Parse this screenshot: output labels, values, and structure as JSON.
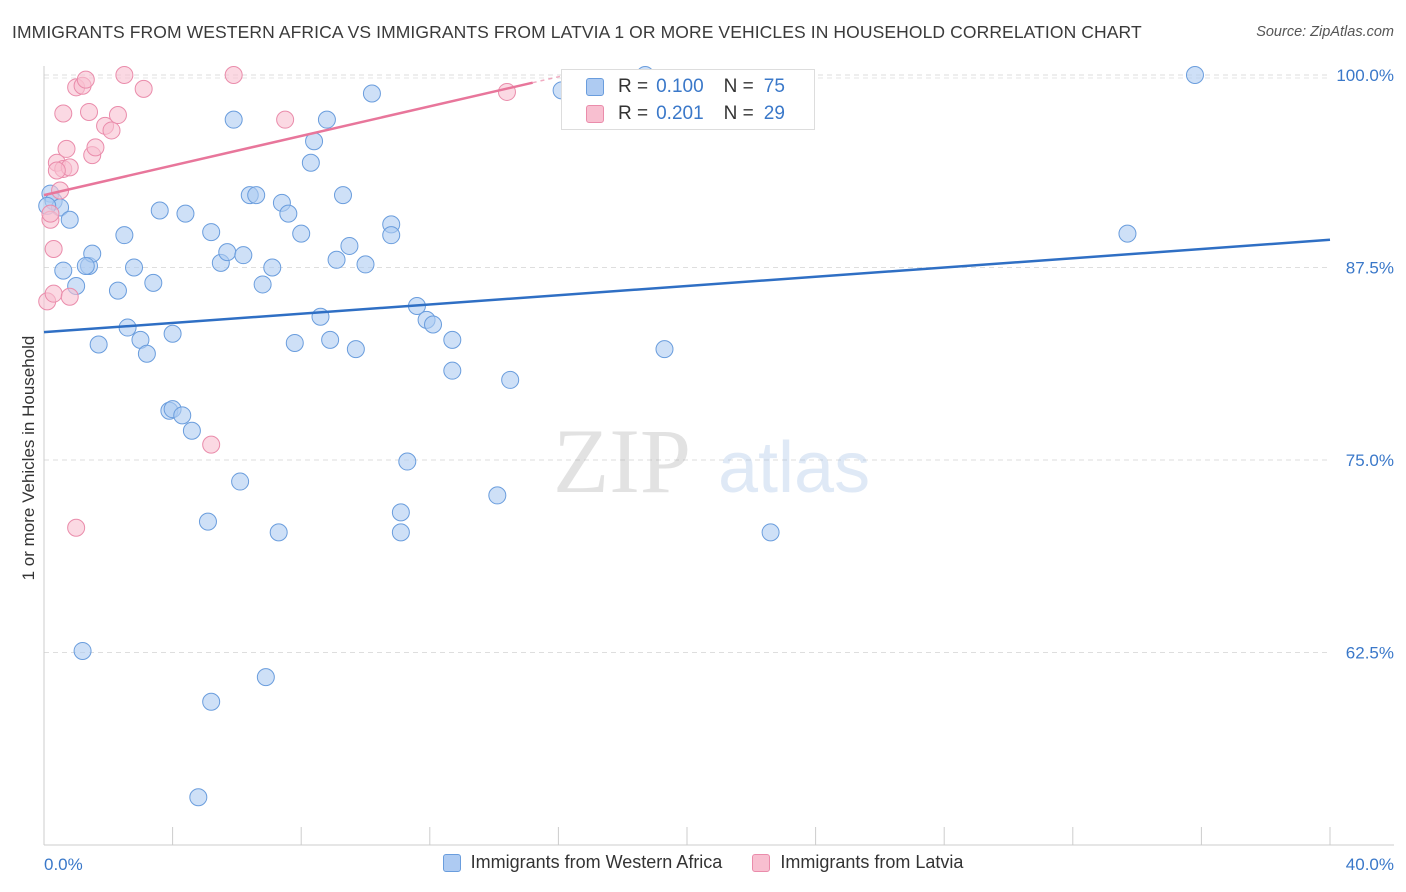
{
  "header": {
    "title": "IMMIGRANTS FROM WESTERN AFRICA VS IMMIGRANTS FROM LATVIA 1 OR MORE VEHICLES IN HOUSEHOLD CORRELATION CHART",
    "source": "Source: ZipAtlas.com"
  },
  "watermark": {
    "zip": "ZIP",
    "atlas": "atlas"
  },
  "legend": {
    "series": [
      {
        "label": "Immigrants from Western Africa",
        "fill": "#aecbf2",
        "stroke": "#6a9ddd"
      },
      {
        "label": "Immigrants from Latvia",
        "fill": "#f8bfd0",
        "stroke": "#ea8cab"
      }
    ]
  },
  "stats": [
    {
      "r_label": "R =",
      "r_value": "0.100",
      "n_label": "N =",
      "n_value": "75"
    },
    {
      "r_label": "R =",
      "r_value": "0.201",
      "n_label": "N =",
      "n_value": "29"
    }
  ],
  "chart_data": {
    "type": "scatter",
    "title": "IMMIGRANTS FROM WESTERN AFRICA VS IMMIGRANTS FROM LATVIA 1 OR MORE VEHICLES IN HOUSEHOLD CORRELATION CHART",
    "xlabel": "",
    "ylabel": "1 or more Vehicles in Household",
    "xlim": [
      0,
      40
    ],
    "ylim": [
      50,
      100
    ],
    "x_tick_labels": [
      "0.0%",
      "40.0%"
    ],
    "y_ticks": [
      62.5,
      75.0,
      87.5,
      100.0
    ],
    "y_tick_labels": [
      "62.5%",
      "75.0%",
      "87.5%",
      "100.0%"
    ],
    "grid": true,
    "series": [
      {
        "name": "Immigrants from Western Africa",
        "color": "#5b93d6",
        "trend": {
          "x": [
            0,
            40
          ],
          "y": [
            83.3,
            89.3
          ],
          "color": "#2f6fc4"
        },
        "points": [
          [
            0.2,
            92.3
          ],
          [
            0.3,
            91.8
          ],
          [
            0.5,
            91.4
          ],
          [
            0.8,
            90.6
          ],
          [
            0.6,
            87.3
          ],
          [
            1.0,
            86.3
          ],
          [
            1.4,
            87.6
          ],
          [
            1.5,
            88.4
          ],
          [
            1.7,
            82.5
          ],
          [
            2.3,
            86.0
          ],
          [
            2.5,
            89.6
          ],
          [
            2.6,
            83.6
          ],
          [
            2.8,
            87.5
          ],
          [
            3.0,
            82.8
          ],
          [
            3.2,
            81.9
          ],
          [
            3.4,
            86.5
          ],
          [
            3.6,
            91.2
          ],
          [
            3.9,
            78.2
          ],
          [
            4.0,
            78.3
          ],
          [
            4.0,
            83.2
          ],
          [
            4.3,
            77.9
          ],
          [
            4.4,
            91.0
          ],
          [
            4.6,
            76.9
          ],
          [
            5.1,
            71.0
          ],
          [
            5.2,
            89.8
          ],
          [
            5.5,
            87.8
          ],
          [
            5.7,
            88.5
          ],
          [
            5.9,
            97.1
          ],
          [
            6.1,
            73.6
          ],
          [
            6.2,
            88.3
          ],
          [
            6.4,
            92.2
          ],
          [
            6.6,
            92.2
          ],
          [
            6.8,
            86.4
          ],
          [
            7.1,
            87.5
          ],
          [
            7.3,
            70.3
          ],
          [
            7.4,
            91.7
          ],
          [
            7.6,
            91.0
          ],
          [
            7.8,
            82.6
          ],
          [
            8.0,
            89.7
          ],
          [
            8.3,
            94.3
          ],
          [
            8.4,
            95.7
          ],
          [
            8.6,
            84.3
          ],
          [
            8.8,
            97.1
          ],
          [
            8.9,
            82.8
          ],
          [
            9.1,
            88.0
          ],
          [
            9.3,
            92.2
          ],
          [
            9.5,
            88.9
          ],
          [
            9.7,
            82.2
          ],
          [
            10.0,
            87.7
          ],
          [
            10.2,
            98.8
          ],
          [
            10.8,
            90.3
          ],
          [
            10.8,
            89.6
          ],
          [
            11.1,
            71.6
          ],
          [
            11.1,
            70.3
          ],
          [
            11.3,
            74.9
          ],
          [
            11.6,
            85.0
          ],
          [
            11.9,
            84.1
          ],
          [
            12.1,
            83.8
          ],
          [
            12.7,
            82.8
          ],
          [
            12.7,
            80.8
          ],
          [
            14.1,
            72.7
          ],
          [
            14.5,
            80.2
          ],
          [
            16.1,
            99.0
          ],
          [
            16.4,
            99.2
          ],
          [
            18.7,
            100.0
          ],
          [
            19.3,
            82.2
          ],
          [
            22.6,
            70.3
          ],
          [
            33.7,
            89.7
          ],
          [
            35.8,
            100.0
          ],
          [
            1.2,
            62.6
          ],
          [
            5.2,
            59.3
          ],
          [
            6.9,
            60.9
          ],
          [
            4.8,
            53.1
          ],
          [
            0.1,
            91.5
          ],
          [
            1.3,
            87.6
          ]
        ]
      },
      {
        "name": "Immigrants from Latvia",
        "color": "#ef8fae",
        "trend": {
          "x": [
            0,
            15.2
          ],
          "y": [
            92.2,
            99.5
          ],
          "color": "#e8769b",
          "dashed_extension_to_x": 16.3
        },
        "points": [
          [
            0.1,
            85.3
          ],
          [
            0.2,
            90.6
          ],
          [
            0.2,
            91.0
          ],
          [
            0.3,
            85.8
          ],
          [
            0.3,
            88.7
          ],
          [
            0.4,
            94.3
          ],
          [
            0.5,
            92.5
          ],
          [
            0.6,
            97.5
          ],
          [
            0.6,
            93.9
          ],
          [
            0.7,
            95.2
          ],
          [
            0.8,
            94.0
          ],
          [
            0.8,
            85.6
          ],
          [
            1.0,
            99.2
          ],
          [
            1.2,
            99.3
          ],
          [
            1.3,
            99.7
          ],
          [
            1.4,
            97.6
          ],
          [
            1.5,
            94.8
          ],
          [
            1.6,
            95.3
          ],
          [
            1.9,
            96.7
          ],
          [
            2.1,
            96.4
          ],
          [
            2.3,
            97.4
          ],
          [
            2.5,
            100.0
          ],
          [
            3.1,
            99.1
          ],
          [
            5.2,
            76.0
          ],
          [
            5.9,
            100.0
          ],
          [
            7.5,
            97.1
          ],
          [
            1.0,
            70.6
          ],
          [
            14.4,
            98.9
          ],
          [
            0.4,
            93.8
          ]
        ]
      }
    ]
  }
}
